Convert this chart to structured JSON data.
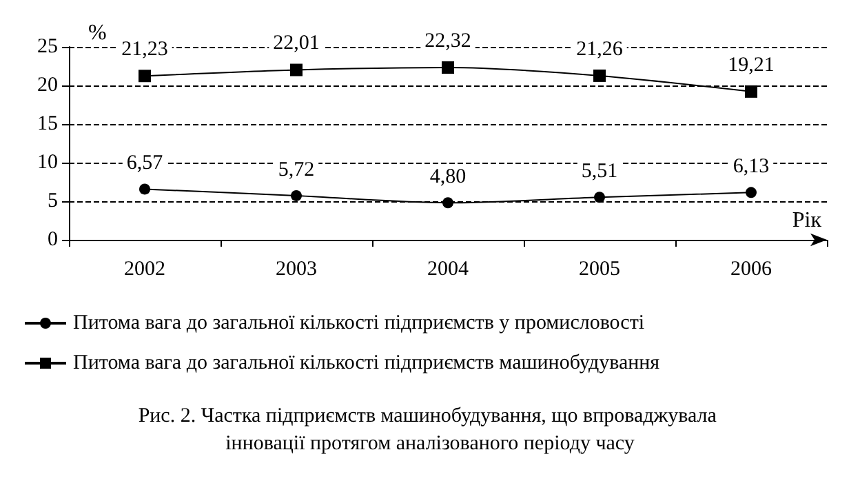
{
  "chart_data": {
    "type": "line",
    "xlabel": "Рік",
    "ylabel": "%",
    "categories": [
      "2002",
      "2003",
      "2004",
      "2005",
      "2006"
    ],
    "series": [
      {
        "name": "Питома вага до загальної кількості підприємств у промисловості",
        "color": "#000000",
        "marker": "circle",
        "values": [
          6.57,
          5.72,
          4.8,
          5.51,
          6.13
        ],
        "value_labels": [
          "6,57",
          "5,72",
          "4,80",
          "5,51",
          "6,13"
        ]
      },
      {
        "name": "Питома вага до загальної кількості підприємств машинобудування",
        "color": "#000000",
        "marker": "square",
        "values": [
          21.23,
          22.01,
          22.32,
          21.26,
          19.21
        ],
        "value_labels": [
          "21,23",
          "22,01",
          "22,32",
          "21,26",
          "19,21"
        ]
      }
    ],
    "ylim": [
      0,
      25
    ],
    "yticks": [
      0,
      5,
      10,
      15,
      20,
      25
    ],
    "grid": "y",
    "legend": "bottom",
    "line_style": "solid",
    "annotations": [
      "Рис. 2. Частка підприємств машинобудування, що впроваджувала інновації протягом аналізованого періоду часу"
    ]
  }
}
